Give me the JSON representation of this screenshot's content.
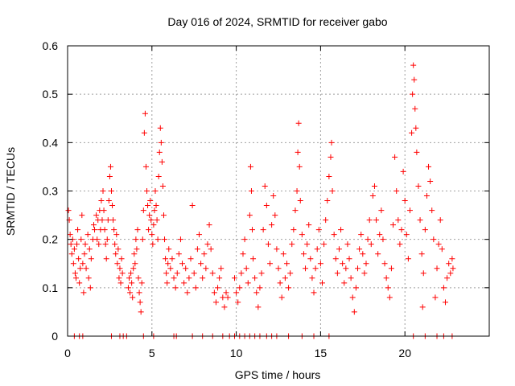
{
  "chart_data": {
    "type": "scatter",
    "title": "Day 016 of 2024, SRMTID for receiver gabo",
    "xlabel": "GPS time / hours",
    "ylabel": "SRMTID / TECUs",
    "xlim": [
      0,
      25
    ],
    "ylim": [
      0,
      0.6
    ],
    "x_ticks": [
      0,
      5,
      10,
      15,
      20
    ],
    "y_ticks": [
      0,
      0.1,
      0.2,
      0.3,
      0.4,
      0.5,
      0.6
    ],
    "x_tick_labels": [
      "0",
      "5",
      "10",
      "15",
      "20"
    ],
    "y_tick_labels": [
      "0",
      "0.1",
      "0.2",
      "0.3",
      "0.4",
      "0.5",
      "0.6"
    ],
    "grid": true,
    "marker": "+",
    "series": [
      {
        "name": "SRMTID",
        "color": "#ff0000",
        "points": [
          [
            0.05,
            0.26
          ],
          [
            0.1,
            0.24
          ],
          [
            0.15,
            0.21
          ],
          [
            0.2,
            0.19
          ],
          [
            0.25,
            0.17
          ],
          [
            0.3,
            0.2
          ],
          [
            0.35,
            0.15
          ],
          [
            0.4,
            0.18
          ],
          [
            0.45,
            0.13
          ],
          [
            0.5,
            0.12
          ],
          [
            0.55,
            0.19
          ],
          [
            0.6,
            0.22
          ],
          [
            0.65,
            0.16
          ],
          [
            0.7,
            0.11
          ],
          [
            0.75,
            0.14
          ],
          [
            0.8,
            0.2
          ],
          [
            0.85,
            0.25
          ],
          [
            0.9,
            0.15
          ],
          [
            0.95,
            0.09
          ],
          [
            1.0,
            0.17
          ],
          [
            1.05,
            0.19
          ],
          [
            1.1,
            0.14
          ],
          [
            1.2,
            0.21
          ],
          [
            1.25,
            0.12
          ],
          [
            1.3,
            0.18
          ],
          [
            1.35,
            0.1
          ],
          [
            1.4,
            0.16
          ],
          [
            1.5,
            0.2
          ],
          [
            1.55,
            0.23
          ],
          [
            1.6,
            0.22
          ],
          [
            1.7,
            0.25
          ],
          [
            1.75,
            0.2
          ],
          [
            1.8,
            0.24
          ],
          [
            1.85,
            0.19
          ],
          [
            1.9,
            0.26
          ],
          [
            1.95,
            0.22
          ],
          [
            2.0,
            0.28
          ],
          [
            2.05,
            0.24
          ],
          [
            2.1,
            0.3
          ],
          [
            2.15,
            0.26
          ],
          [
            2.2,
            0.22
          ],
          [
            2.25,
            0.19
          ],
          [
            2.3,
            0.16
          ],
          [
            2.35,
            0.2
          ],
          [
            2.4,
            0.24
          ],
          [
            2.45,
            0.28
          ],
          [
            2.5,
            0.33
          ],
          [
            2.55,
            0.35
          ],
          [
            2.6,
            0.3
          ],
          [
            2.65,
            0.27
          ],
          [
            2.7,
            0.24
          ],
          [
            2.75,
            0.22
          ],
          [
            2.8,
            0.19
          ],
          [
            2.85,
            0.17
          ],
          [
            2.9,
            0.21
          ],
          [
            2.95,
            0.15
          ],
          [
            3.0,
            0.18
          ],
          [
            3.05,
            0.12
          ],
          [
            3.1,
            0.14
          ],
          [
            3.15,
            0.11
          ],
          [
            3.2,
            0.16
          ],
          [
            3.25,
            0.13
          ],
          [
            3.6,
            0.1
          ],
          [
            3.65,
            0.12
          ],
          [
            3.7,
            0.09
          ],
          [
            3.75,
            0.13
          ],
          [
            3.8,
            0.11
          ],
          [
            3.85,
            0.08
          ],
          [
            3.9,
            0.14
          ],
          [
            3.95,
            0.17
          ],
          [
            4.0,
            0.15
          ],
          [
            4.05,
            0.2
          ],
          [
            4.1,
            0.18
          ],
          [
            4.15,
            0.22
          ],
          [
            4.2,
            0.12
          ],
          [
            4.25,
            0.09
          ],
          [
            4.3,
            0.07
          ],
          [
            4.35,
            0.05
          ],
          [
            4.4,
            0.11
          ],
          [
            4.45,
            0.2
          ],
          [
            4.5,
            0.26
          ],
          [
            4.55,
            0.42
          ],
          [
            4.6,
            0.46
          ],
          [
            4.65,
            0.35
          ],
          [
            4.7,
            0.3
          ],
          [
            4.75,
            0.27
          ],
          [
            4.8,
            0.22
          ],
          [
            4.85,
            0.25
          ],
          [
            4.9,
            0.28
          ],
          [
            4.95,
            0.24
          ],
          [
            5.0,
            0.21
          ],
          [
            5.05,
            0.19
          ],
          [
            5.1,
            0.23
          ],
          [
            5.15,
            0.26
          ],
          [
            5.2,
            0.3
          ],
          [
            5.25,
            0.27
          ],
          [
            5.3,
            0.24
          ],
          [
            5.35,
            0.2
          ],
          [
            5.4,
            0.33
          ],
          [
            5.45,
            0.38
          ],
          [
            5.5,
            0.43
          ],
          [
            5.55,
            0.4
          ],
          [
            5.6,
            0.36
          ],
          [
            5.65,
            0.31
          ],
          [
            5.7,
            0.25
          ],
          [
            5.75,
            0.2
          ],
          [
            5.8,
            0.16
          ],
          [
            5.85,
            0.13
          ],
          [
            5.9,
            0.11
          ],
          [
            5.95,
            0.15
          ],
          [
            6.0,
            0.18
          ],
          [
            6.1,
            0.14
          ],
          [
            6.2,
            0.16
          ],
          [
            6.3,
            0.12
          ],
          [
            6.4,
            0.1
          ],
          [
            6.5,
            0.13
          ],
          [
            6.6,
            0.17
          ],
          [
            6.7,
            0.2
          ],
          [
            6.8,
            0.15
          ],
          [
            6.9,
            0.11
          ],
          [
            7.0,
            0.14
          ],
          [
            7.1,
            0.09
          ],
          [
            7.2,
            0.12
          ],
          [
            7.3,
            0.16
          ],
          [
            7.4,
            0.27
          ],
          [
            7.5,
            0.13
          ],
          [
            7.6,
            0.1
          ],
          [
            7.7,
            0.18
          ],
          [
            7.8,
            0.21
          ],
          [
            7.9,
            0.15
          ],
          [
            8.0,
            0.12
          ],
          [
            8.1,
            0.17
          ],
          [
            8.2,
            0.14
          ],
          [
            8.3,
            0.19
          ],
          [
            8.4,
            0.23
          ],
          [
            8.5,
            0.18
          ],
          [
            8.6,
            0.13
          ],
          [
            8.7,
            0.09
          ],
          [
            8.8,
            0.07
          ],
          [
            8.9,
            0.1
          ],
          [
            9.0,
            0.12
          ],
          [
            9.1,
            0.14
          ],
          [
            9.2,
            0.08
          ],
          [
            9.3,
            0.06
          ],
          [
            9.4,
            0.09
          ],
          [
            9.5,
            0.08
          ],
          [
            9.9,
            0.12
          ],
          [
            10.0,
            0.09
          ],
          [
            10.1,
            0.07
          ],
          [
            10.2,
            0.1
          ],
          [
            10.3,
            0.13
          ],
          [
            10.4,
            0.17
          ],
          [
            10.5,
            0.2
          ],
          [
            10.6,
            0.14
          ],
          [
            10.7,
            0.11
          ],
          [
            10.8,
            0.25
          ],
          [
            10.85,
            0.35
          ],
          [
            10.9,
            0.3
          ],
          [
            10.95,
            0.22
          ],
          [
            11.0,
            0.16
          ],
          [
            11.1,
            0.12
          ],
          [
            11.2,
            0.09
          ],
          [
            11.3,
            0.06
          ],
          [
            11.4,
            0.1
          ],
          [
            11.5,
            0.13
          ],
          [
            11.6,
            0.22
          ],
          [
            11.7,
            0.31
          ],
          [
            11.8,
            0.27
          ],
          [
            11.9,
            0.19
          ],
          [
            12.0,
            0.15
          ],
          [
            12.1,
            0.23
          ],
          [
            12.2,
            0.29
          ],
          [
            12.3,
            0.25
          ],
          [
            12.4,
            0.18
          ],
          [
            12.5,
            0.14
          ],
          [
            12.6,
            0.11
          ],
          [
            12.7,
            0.08
          ],
          [
            12.8,
            0.17
          ],
          [
            12.9,
            0.12
          ],
          [
            13.0,
            0.15
          ],
          [
            13.1,
            0.1
          ],
          [
            13.2,
            0.13
          ],
          [
            13.3,
            0.19
          ],
          [
            13.4,
            0.22
          ],
          [
            13.5,
            0.26
          ],
          [
            13.6,
            0.3
          ],
          [
            13.65,
            0.38
          ],
          [
            13.7,
            0.44
          ],
          [
            13.75,
            0.35
          ],
          [
            13.8,
            0.28
          ],
          [
            13.9,
            0.21
          ],
          [
            14.0,
            0.17
          ],
          [
            14.1,
            0.14
          ],
          [
            14.2,
            0.19
          ],
          [
            14.3,
            0.23
          ],
          [
            14.4,
            0.16
          ],
          [
            14.5,
            0.12
          ],
          [
            14.6,
            0.09
          ],
          [
            14.7,
            0.14
          ],
          [
            14.8,
            0.18
          ],
          [
            14.9,
            0.22
          ],
          [
            15.0,
            0.15
          ],
          [
            15.1,
            0.11
          ],
          [
            15.2,
            0.19
          ],
          [
            15.3,
            0.24
          ],
          [
            15.4,
            0.28
          ],
          [
            15.5,
            0.33
          ],
          [
            15.6,
            0.37
          ],
          [
            15.65,
            0.4
          ],
          [
            15.7,
            0.3
          ],
          [
            15.8,
            0.21
          ],
          [
            15.9,
            0.16
          ],
          [
            16.0,
            0.13
          ],
          [
            16.1,
            0.18
          ],
          [
            16.2,
            0.22
          ],
          [
            16.3,
            0.15
          ],
          [
            16.4,
            0.11
          ],
          [
            16.5,
            0.14
          ],
          [
            16.6,
            0.19
          ],
          [
            16.7,
            0.16
          ],
          [
            16.8,
            0.12
          ],
          [
            16.9,
            0.08
          ],
          [
            17.0,
            0.05
          ],
          [
            17.1,
            0.1
          ],
          [
            17.2,
            0.14
          ],
          [
            17.3,
            0.18
          ],
          [
            17.4,
            0.21
          ],
          [
            17.5,
            0.17
          ],
          [
            17.6,
            0.13
          ],
          [
            17.7,
            0.15
          ],
          [
            17.8,
            0.2
          ],
          [
            17.9,
            0.24
          ],
          [
            18.0,
            0.19
          ],
          [
            18.1,
            0.29
          ],
          [
            18.2,
            0.31
          ],
          [
            18.3,
            0.24
          ],
          [
            18.4,
            0.17
          ],
          [
            18.5,
            0.21
          ],
          [
            18.6,
            0.26
          ],
          [
            18.7,
            0.2
          ],
          [
            18.8,
            0.15
          ],
          [
            18.9,
            0.12
          ],
          [
            19.0,
            0.1
          ],
          [
            19.1,
            0.08
          ],
          [
            19.2,
            0.14
          ],
          [
            19.3,
            0.23
          ],
          [
            19.4,
            0.37
          ],
          [
            19.5,
            0.3
          ],
          [
            19.6,
            0.24
          ],
          [
            19.7,
            0.19
          ],
          [
            19.8,
            0.22
          ],
          [
            19.9,
            0.34
          ],
          [
            20.0,
            0.28
          ],
          [
            20.1,
            0.21
          ],
          [
            20.2,
            0.16
          ],
          [
            20.3,
            0.26
          ],
          [
            20.4,
            0.42
          ],
          [
            20.45,
            0.5
          ],
          [
            20.5,
            0.56
          ],
          [
            20.55,
            0.53
          ],
          [
            20.6,
            0.47
          ],
          [
            20.65,
            0.43
          ],
          [
            20.7,
            0.38
          ],
          [
            20.8,
            0.31
          ],
          [
            20.9,
            0.24
          ],
          [
            21.0,
            0.17
          ],
          [
            21.05,
            0.06
          ],
          [
            21.1,
            0.13
          ],
          [
            21.2,
            0.22
          ],
          [
            21.3,
            0.29
          ],
          [
            21.4,
            0.35
          ],
          [
            21.5,
            0.32
          ],
          [
            21.6,
            0.26
          ],
          [
            21.7,
            0.2
          ],
          [
            21.8,
            0.08
          ],
          [
            21.9,
            0.14
          ],
          [
            22.0,
            0.19
          ],
          [
            22.1,
            0.24
          ],
          [
            22.2,
            0.18
          ],
          [
            22.3,
            0.1
          ],
          [
            22.4,
            0.07
          ],
          [
            22.5,
            0.12
          ],
          [
            22.6,
            0.15
          ],
          [
            22.7,
            0.13
          ],
          [
            22.8,
            0.16
          ],
          [
            22.85,
            0.14
          ],
          [
            0.4,
            0.0
          ],
          [
            0.7,
            0.0
          ],
          [
            0.9,
            0.0
          ],
          [
            2.6,
            0.0
          ],
          [
            3.1,
            0.0
          ],
          [
            3.3,
            0.0
          ],
          [
            3.5,
            0.0
          ],
          [
            4.5,
            0.0
          ],
          [
            5.1,
            0.0
          ],
          [
            6.3,
            0.0
          ],
          [
            6.45,
            0.0
          ],
          [
            7.4,
            0.0
          ],
          [
            8.0,
            0.0
          ],
          [
            8.6,
            0.0
          ],
          [
            9.2,
            0.0
          ],
          [
            9.6,
            0.0
          ],
          [
            9.9,
            0.0
          ],
          [
            10.2,
            0.0
          ],
          [
            10.5,
            0.0
          ],
          [
            10.8,
            0.0
          ],
          [
            11.1,
            0.0
          ],
          [
            11.4,
            0.0
          ],
          [
            11.8,
            0.0
          ],
          [
            12.1,
            0.0
          ],
          [
            12.4,
            0.0
          ],
          [
            13.1,
            0.0
          ],
          [
            13.9,
            0.0
          ],
          [
            14.6,
            0.0
          ],
          [
            15.5,
            0.0
          ],
          [
            20.5,
            0.0
          ],
          [
            21.2,
            0.0
          ],
          [
            21.9,
            0.0
          ],
          [
            22.3,
            0.0
          ],
          [
            22.8,
            0.0
          ]
        ]
      }
    ]
  }
}
